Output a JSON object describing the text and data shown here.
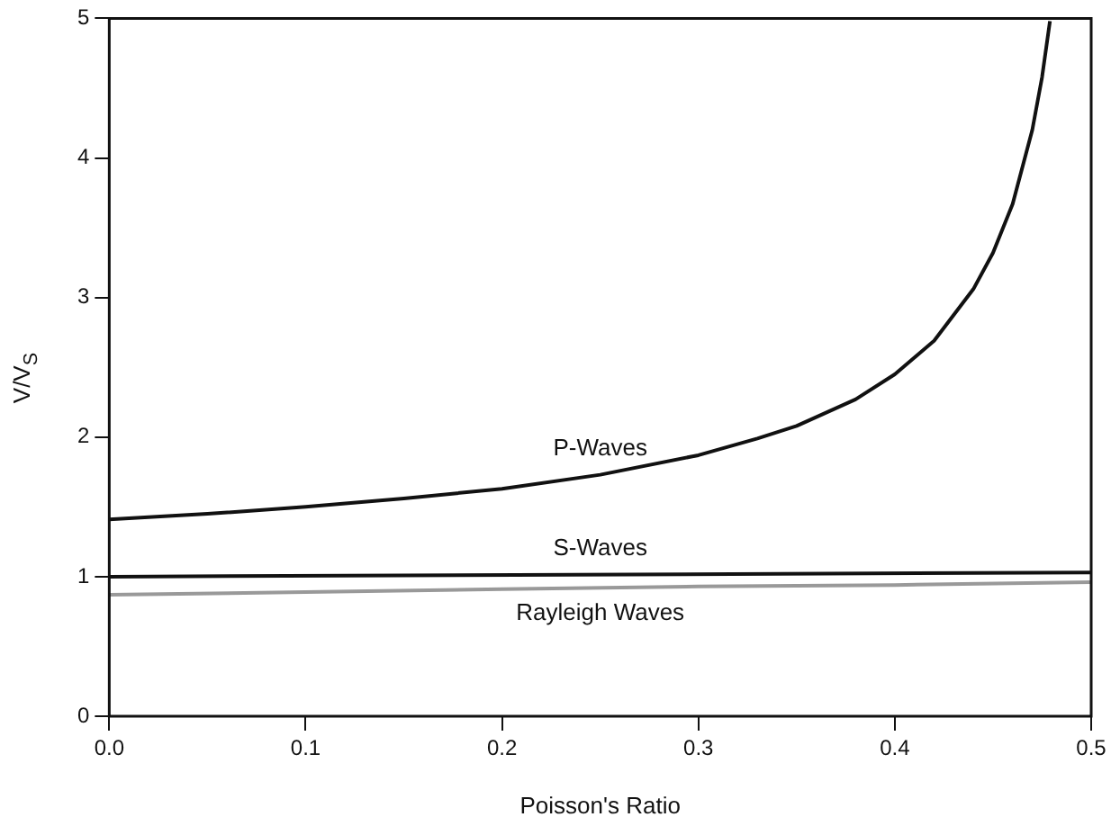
{
  "chart_data": {
    "type": "line",
    "xlabel": "Poisson's Ratio",
    "ylabel": "V/V$_{S}$",
    "xlim": [
      0,
      0.5
    ],
    "ylim": [
      0,
      5
    ],
    "xticks": [
      {
        "value": 0,
        "label": "0.0"
      },
      {
        "value": 0.1,
        "label": "0.1"
      },
      {
        "value": 0.2,
        "label": "0.2"
      },
      {
        "value": 0.3,
        "label": "0.3"
      },
      {
        "value": 0.4,
        "label": "0.4"
      },
      {
        "value": 0.5,
        "label": "0.5"
      }
    ],
    "yticks": [
      0,
      1,
      2,
      3,
      4,
      5
    ],
    "grid": false,
    "legend": false,
    "marker": "none",
    "line_style": "solid",
    "series": [
      {
        "name": "P-Waves",
        "color": "#111111",
        "x": [
          0,
          0.05,
          0.1,
          0.15,
          0.2,
          0.25,
          0.3,
          0.33,
          0.35,
          0.38,
          0.4,
          0.42,
          0.44,
          0.45,
          0.46,
          0.47,
          0.475,
          0.479
        ],
        "values": [
          1.41,
          1.45,
          1.5,
          1.56,
          1.63,
          1.73,
          1.87,
          1.99,
          2.08,
          2.27,
          2.45,
          2.69,
          3.06,
          3.32,
          3.67,
          4.2,
          4.58,
          4.98
        ]
      },
      {
        "name": "S-Waves",
        "color": "#111111",
        "x": [
          0,
          0.5
        ],
        "values": [
          1,
          1.03
        ]
      },
      {
        "name": "Rayleigh Waves",
        "color": "#999999",
        "x": [
          0,
          0.1,
          0.2,
          0.3,
          0.4,
          0.5
        ],
        "values": [
          0.87,
          0.89,
          0.91,
          0.93,
          0.94,
          0.96
        ]
      }
    ]
  }
}
